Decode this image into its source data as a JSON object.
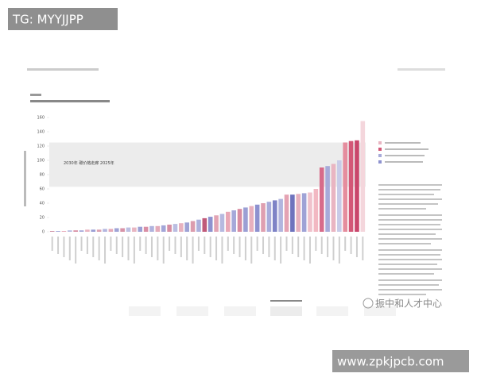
{
  "chart_data": {
    "type": "bar",
    "categories": [
      null,
      null,
      null,
      null,
      null,
      null,
      null,
      null,
      null,
      null,
      null,
      null,
      null,
      null,
      null,
      null,
      null,
      null,
      null,
      null,
      null,
      null,
      null,
      null,
      null,
      null,
      null,
      null,
      null,
      null,
      null,
      null,
      null,
      null,
      null,
      null,
      null,
      null,
      null,
      null,
      null,
      null,
      null,
      null,
      null,
      null,
      null,
      null,
      null,
      null,
      null,
      null,
      null,
      null
    ],
    "values": [
      1,
      1,
      1,
      2,
      2,
      2,
      3,
      3,
      3,
      4,
      4,
      5,
      5,
      6,
      6,
      7,
      7,
      8,
      8,
      9,
      10,
      11,
      12,
      13,
      15,
      17,
      19,
      21,
      23,
      25,
      28,
      30,
      32,
      34,
      36,
      38,
      40,
      42,
      44,
      46,
      52,
      52,
      53,
      54,
      55,
      60,
      90,
      92,
      95,
      100,
      125,
      127,
      128,
      155
    ],
    "colors": [
      "#c98aa0",
      "#9fa3d6",
      "#e6a5b5",
      "#b8bbe0",
      "#d88fa4",
      "#a6a9da",
      "#e9b3c0",
      "#9a9ed4",
      "#dca0b0",
      "#b3b6df",
      "#e5a9b8",
      "#a0a4d6",
      "#d793a8",
      "#bcbfe2",
      "#e8b6c2",
      "#9ca0d5",
      "#d98fa5",
      "#b0b3de",
      "#e4aab9",
      "#a3a6d8",
      "#d58ea3",
      "#babde1",
      "#e7b1bf",
      "#9ea2d5",
      "#dc9cae",
      "#adb0dc",
      "#c05a7a",
      "#8e92cf",
      "#e2a4b4",
      "#b6b9e0",
      "#e9a7b6",
      "#a5a8d9",
      "#d88ca2",
      "#9b9fd4",
      "#e7b0be",
      "#8d91cf",
      "#df9fb0",
      "#a9acdb",
      "#7e83c6",
      "#b2b5de",
      "#e5a3b3",
      "#6e73bd",
      "#e6b0be",
      "#9fa3d6",
      "#f0c2cc",
      "#f2b8c2",
      "#d76b8a",
      "#a7aad9",
      "#e9b5c2",
      "#c8cbe8",
      "#e58d9e",
      "#d35777",
      "#c9466b",
      "#f4d6dc"
    ],
    "ylim": [
      0,
      160
    ],
    "yticks": [
      0,
      20,
      40,
      60,
      80,
      100,
      120,
      140,
      160
    ],
    "band": [
      63,
      125
    ],
    "band_label": "2030年 碳价格走廊 2025年"
  },
  "watermarks": {
    "top": "TG: MYYJJPP",
    "logo": "振中和人才中心",
    "url": "www.zpkjpcb.com"
  }
}
